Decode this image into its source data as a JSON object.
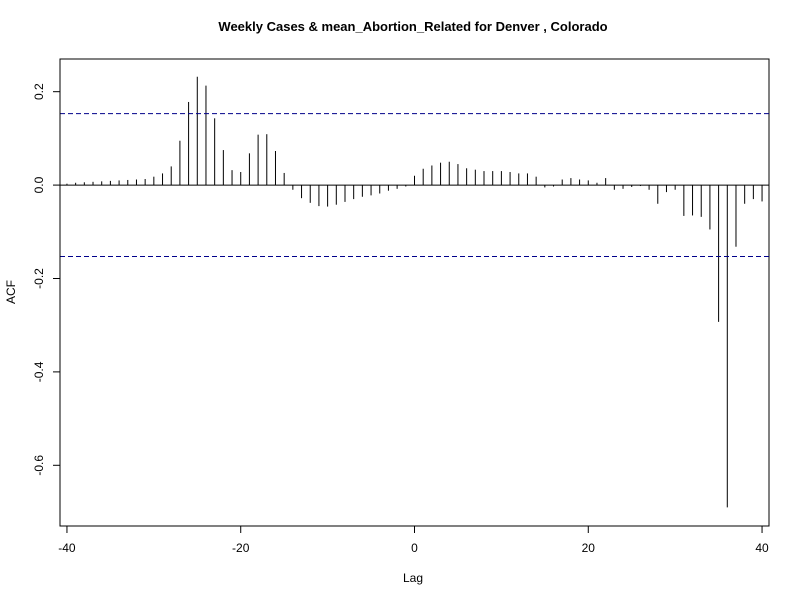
{
  "chart_data": {
    "type": "bar",
    "title": "Weekly Cases & mean_Abortion_Related for Denver , Colorado",
    "xlabel": "Lag",
    "ylabel": "ACF",
    "xlim": [
      -40.8,
      40.8
    ],
    "ylim": [
      -0.73,
      0.27
    ],
    "x_ticks": [
      -40,
      -20,
      0,
      20,
      40
    ],
    "x_tick_labels": [
      "-40",
      "-20",
      "0",
      "20",
      "40"
    ],
    "y_ticks": [
      -0.6,
      -0.4,
      -0.2,
      0.0,
      0.2
    ],
    "y_tick_labels": [
      "-0.6",
      "-0.4",
      "-0.2",
      "0.0",
      "0.2"
    ],
    "confidence_bounds": [
      0.153,
      -0.153
    ],
    "confidence_color": "#00008b",
    "bar_color": "#000000",
    "grid": false,
    "lags": [
      -40,
      -39,
      -38,
      -37,
      -36,
      -35,
      -34,
      -33,
      -32,
      -31,
      -30,
      -29,
      -28,
      -27,
      -26,
      -25,
      -24,
      -23,
      -22,
      -21,
      -20,
      -19,
      -18,
      -17,
      -16,
      -15,
      -14,
      -13,
      -12,
      -11,
      -10,
      -9,
      -8,
      -7,
      -6,
      -5,
      -4,
      -3,
      -2,
      -1,
      0,
      1,
      2,
      3,
      4,
      5,
      6,
      7,
      8,
      9,
      10,
      11,
      12,
      13,
      14,
      15,
      16,
      17,
      18,
      19,
      20,
      21,
      22,
      23,
      24,
      25,
      26,
      27,
      28,
      29,
      30,
      31,
      32,
      33,
      34,
      35,
      36,
      37,
      38,
      39,
      40
    ],
    "acf": [
      0.003,
      0.005,
      0.006,
      0.007,
      0.008,
      0.009,
      0.01,
      0.011,
      0.012,
      0.013,
      0.018,
      0.025,
      0.04,
      0.095,
      0.178,
      0.232,
      0.213,
      0.143,
      0.075,
      0.032,
      0.028,
      0.068,
      0.108,
      0.109,
      0.073,
      0.026,
      -0.01,
      -0.028,
      -0.038,
      -0.045,
      -0.046,
      -0.042,
      -0.036,
      -0.03,
      -0.025,
      -0.022,
      -0.018,
      -0.012,
      -0.008,
      -0.003,
      0.02,
      0.035,
      0.042,
      0.048,
      0.05,
      0.045,
      0.036,
      0.033,
      0.03,
      0.03,
      0.03,
      0.028,
      0.025,
      0.025,
      0.018,
      -0.005,
      -0.003,
      0.012,
      0.015,
      0.012,
      0.01,
      0.005,
      0.015,
      -0.01,
      -0.008,
      -0.004,
      -0.002,
      -0.01,
      -0.04,
      -0.015,
      -0.01,
      -0.066,
      -0.065,
      -0.068,
      -0.095,
      -0.293,
      -0.69,
      -0.132,
      -0.04,
      -0.03,
      -0.035
    ]
  }
}
